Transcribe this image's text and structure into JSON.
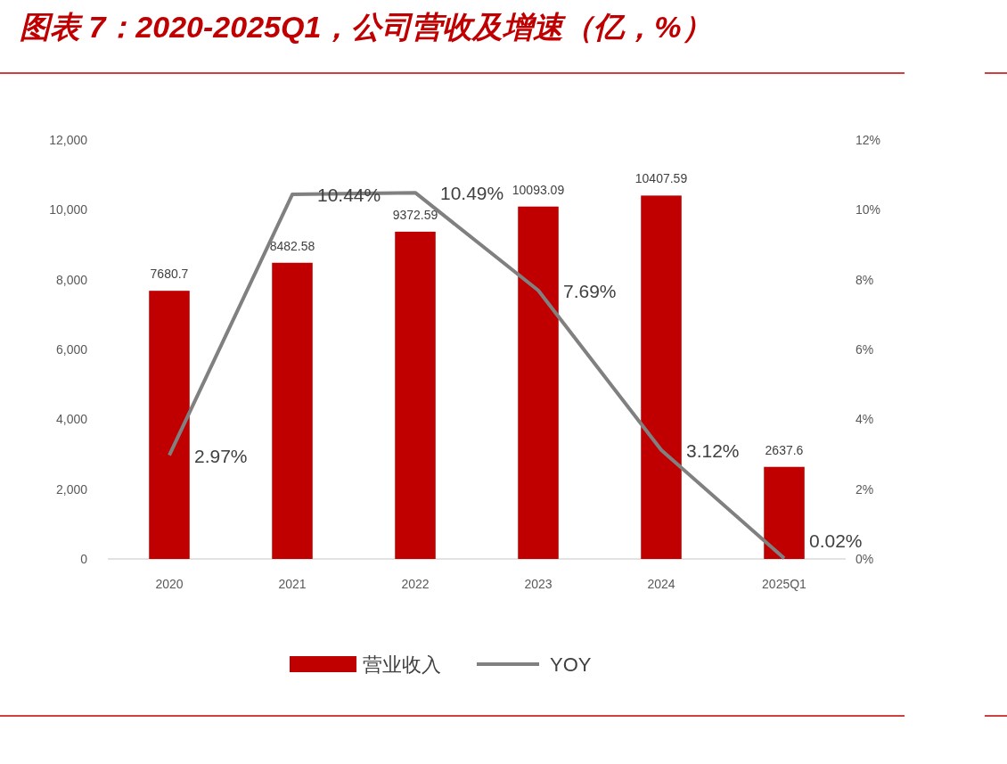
{
  "chart_data": {
    "type": "bar",
    "title": "图表 7：2020-2025Q1，公司营收及增速（亿，%）",
    "categories": [
      "2020",
      "2021",
      "2022",
      "2023",
      "2024",
      "2025Q1"
    ],
    "series": [
      {
        "name": "营业收入",
        "color": "#c00000",
        "values": [
          7680.7,
          8482.58,
          9372.59,
          10093.09,
          10407.59,
          2637.6
        ],
        "value_labels": [
          "7680.7",
          "8482.58",
          "9372.59",
          "10093.09",
          "10407.59",
          "2637.6"
        ]
      },
      {
        "name": "YOY",
        "type": "line",
        "axis": "y2",
        "color": "#808080",
        "values": [
          2.97,
          10.44,
          10.49,
          7.69,
          3.12,
          0.02
        ],
        "value_labels": [
          "2.97%",
          "10.44%",
          "10.49%",
          "7.69%",
          "3.12%",
          "0.02%"
        ]
      }
    ],
    "ylim": [
      0,
      12000
    ],
    "yticks": [
      0,
      {
        "value": 2000,
        "label": "2,000"
      },
      {
        "value": 4000,
        "label": "4,000"
      },
      {
        "value": 6000,
        "label": "6,000"
      },
      {
        "value": 8000,
        "label": "8,000"
      },
      {
        "value": 10000,
        "label": "10,000"
      },
      {
        "value": 12000,
        "label": "12,000"
      }
    ],
    "y2lim": [
      0,
      12
    ],
    "y2ticks": [
      {
        "value": 0,
        "label": "0%"
      },
      {
        "value": 2,
        "label": "2%"
      },
      {
        "value": 4,
        "label": "4%"
      },
      {
        "value": 6,
        "label": "6%"
      },
      {
        "value": 8,
        "label": "8%"
      },
      {
        "value": 10,
        "label": "10%"
      },
      {
        "value": 12,
        "label": "12%"
      }
    ],
    "legend": "bottom",
    "grid": false
  }
}
